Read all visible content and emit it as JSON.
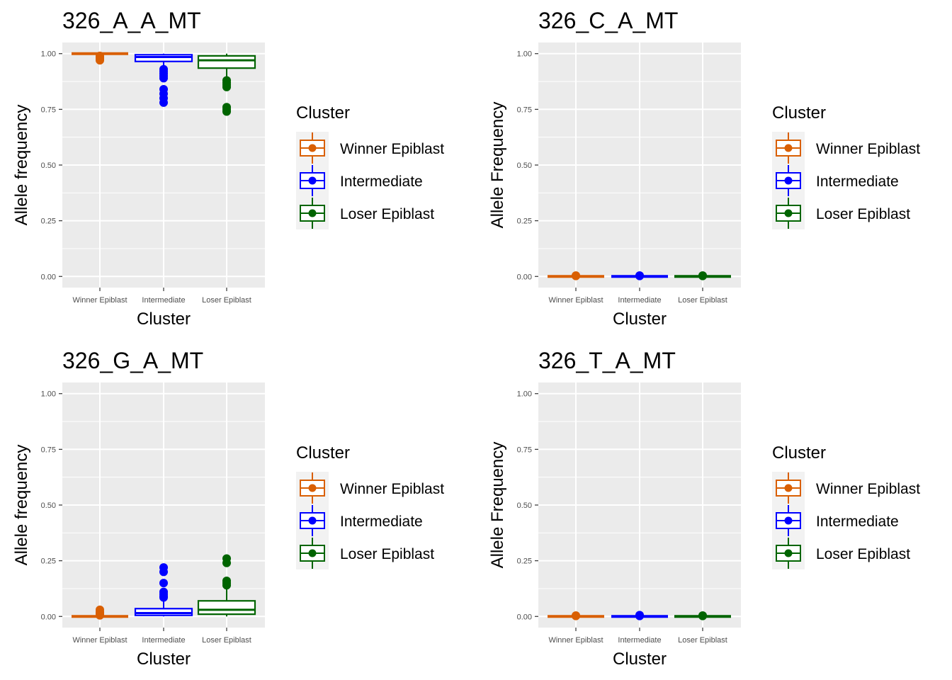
{
  "chart_data": [
    {
      "type": "box",
      "title": "326_A_A_MT",
      "xlabel": "Cluster",
      "ylabel": "Allele frequency",
      "ylim": [
        -0.05,
        1.05
      ],
      "yticks": [
        "0.00",
        "0.25",
        "0.50",
        "0.75",
        "1.00"
      ],
      "categories": [
        "Winner Epiblast",
        "Intermediate",
        "Loser Epiblast"
      ],
      "legend": {
        "title": "Cluster",
        "position": "right",
        "entries": [
          "Winner Epiblast",
          "Intermediate",
          "Loser Epiblast"
        ]
      },
      "series": [
        {
          "category": "Winner Epiblast",
          "color": "#D95F02",
          "min": 1.0,
          "q1": 1.0,
          "median": 1.0,
          "q3": 1.0,
          "max": 1.0,
          "outliers": [
            0.99,
            0.985,
            0.98,
            0.975,
            0.97
          ]
        },
        {
          "category": "Intermediate",
          "color": "#0000FF",
          "min": 0.94,
          "q1": 0.965,
          "median": 0.985,
          "q3": 0.995,
          "max": 1.0,
          "outliers": [
            0.93,
            0.92,
            0.91,
            0.9,
            0.89,
            0.84,
            0.82,
            0.8,
            0.78
          ]
        },
        {
          "category": "Loser Epiblast",
          "color": "#006400",
          "min": 0.89,
          "q1": 0.935,
          "median": 0.97,
          "q3": 0.99,
          "max": 1.0,
          "outliers": [
            0.88,
            0.87,
            0.86,
            0.85,
            0.76,
            0.75,
            0.74
          ]
        }
      ]
    },
    {
      "type": "box",
      "title": "326_C_A_MT",
      "xlabel": "Cluster",
      "ylabel": "Allele Frequency",
      "ylim": [
        -0.05,
        1.05
      ],
      "yticks": [
        "0.00",
        "0.25",
        "0.50",
        "0.75",
        "1.00"
      ],
      "categories": [
        "Winner Epiblast",
        "Intermediate",
        "Loser Epiblast"
      ],
      "legend": {
        "title": "Cluster",
        "position": "right",
        "entries": [
          "Winner Epiblast",
          "Intermediate",
          "Loser Epiblast"
        ]
      },
      "series": [
        {
          "category": "Winner Epiblast",
          "color": "#D95F02",
          "min": 0.0,
          "q1": 0.0,
          "median": 0.0,
          "q3": 0.0,
          "max": 0.0,
          "outliers": [
            0.002,
            0.004
          ]
        },
        {
          "category": "Intermediate",
          "color": "#0000FF",
          "min": 0.0,
          "q1": 0.0,
          "median": 0.0,
          "q3": 0.0,
          "max": 0.0,
          "outliers": [
            0.002,
            0.004
          ]
        },
        {
          "category": "Loser Epiblast",
          "color": "#006400",
          "min": 0.0,
          "q1": 0.0,
          "median": 0.0,
          "q3": 0.0,
          "max": 0.0,
          "outliers": [
            0.002,
            0.004
          ]
        }
      ]
    },
    {
      "type": "box",
      "title": "326_G_A_MT",
      "xlabel": "Cluster",
      "ylabel": "Allele frequency",
      "ylim": [
        -0.05,
        1.05
      ],
      "yticks": [
        "0.00",
        "0.25",
        "0.50",
        "0.75",
        "1.00"
      ],
      "categories": [
        "Winner Epiblast",
        "Intermediate",
        "Loser Epiblast"
      ],
      "legend": {
        "title": "Cluster",
        "position": "right",
        "entries": [
          "Winner Epiblast",
          "Intermediate",
          "Loser Epiblast"
        ]
      },
      "series": [
        {
          "category": "Winner Epiblast",
          "color": "#D95F02",
          "min": 0.0,
          "q1": 0.0,
          "median": 0.0,
          "q3": 0.0,
          "max": 0.0,
          "outliers": [
            0.005,
            0.01,
            0.015,
            0.02,
            0.03
          ]
        },
        {
          "category": "Intermediate",
          "color": "#0000FF",
          "min": 0.0,
          "q1": 0.005,
          "median": 0.015,
          "q3": 0.035,
          "max": 0.08,
          "outliers": [
            0.085,
            0.09,
            0.1,
            0.11,
            0.15,
            0.2,
            0.22
          ]
        },
        {
          "category": "Loser Epiblast",
          "color": "#006400",
          "min": 0.0,
          "q1": 0.01,
          "median": 0.03,
          "q3": 0.07,
          "max": 0.13,
          "outliers": [
            0.14,
            0.15,
            0.16,
            0.24,
            0.26
          ]
        }
      ]
    },
    {
      "type": "box",
      "title": "326_T_A_MT",
      "xlabel": "Cluster",
      "ylabel": "Allele Frequency",
      "ylim": [
        -0.05,
        1.05
      ],
      "yticks": [
        "0.00",
        "0.25",
        "0.50",
        "0.75",
        "1.00"
      ],
      "categories": [
        "Winner Epiblast",
        "Intermediate",
        "Loser Epiblast"
      ],
      "legend": {
        "title": "Cluster",
        "position": "right",
        "entries": [
          "Winner Epiblast",
          "Intermediate",
          "Loser Epiblast"
        ]
      },
      "series": [
        {
          "category": "Winner Epiblast",
          "color": "#D95F02",
          "min": 0.0,
          "q1": 0.0,
          "median": 0.0,
          "q3": 0.0,
          "max": 0.0,
          "outliers": [
            0.002,
            0.004
          ]
        },
        {
          "category": "Intermediate",
          "color": "#0000FF",
          "min": 0.0,
          "q1": 0.0,
          "median": 0.0,
          "q3": 0.0,
          "max": 0.0,
          "outliers": [
            0.002,
            0.006
          ]
        },
        {
          "category": "Loser Epiblast",
          "color": "#006400",
          "min": 0.0,
          "q1": 0.0,
          "median": 0.0,
          "q3": 0.0,
          "max": 0.0,
          "outliers": [
            0.002,
            0.004
          ]
        }
      ]
    }
  ]
}
